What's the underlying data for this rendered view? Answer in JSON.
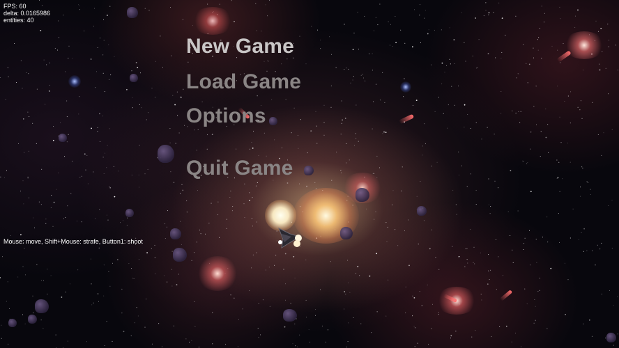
{
  "hud": {
    "fps": "FPS: 60",
    "delta": "delta: 0.0165986",
    "entities": "entities: 40"
  },
  "controls_hint": "Mouse: move, Shift+Mouse: strafe, Button1: shoot",
  "menu": {
    "items": [
      {
        "label": "New Game",
        "selected": true
      },
      {
        "label": "Load Game",
        "selected": false
      },
      {
        "label": "Options",
        "selected": false
      },
      {
        "label": "Quit Game",
        "selected": false
      }
    ]
  },
  "colors": {
    "menu_selected": "#c9c6c6",
    "menu_normal": "#8a8585",
    "hud_text": "#ffffff",
    "space_bg": "#08070d"
  },
  "icons": [
    "spaceship-icon",
    "asteroid-icon",
    "explosion-icon",
    "star-icon"
  ]
}
